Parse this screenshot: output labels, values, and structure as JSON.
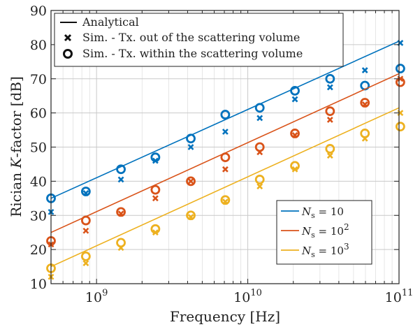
{
  "chart_data": {
    "type": "scatter",
    "xlabel": "Frequency [Hz]",
    "ylabel_prefix": "Rician ",
    "ylabel_var": "K",
    "ylabel_suffix": "-factor [dB]",
    "xscale": "log",
    "xlim": [
      500000000.0,
      100000000000.0
    ],
    "ylim": [
      10,
      90
    ],
    "grid": true,
    "y_ticks": [
      "10",
      "20",
      "30",
      "40",
      "50",
      "60",
      "70",
      "80",
      "90"
    ],
    "x_tick_mantissa": [
      "10",
      "10",
      "10"
    ],
    "x_tick_exponents": [
      "9",
      "10",
      "11"
    ],
    "x_tick_values": [
      1000000000.0,
      10000000000.0,
      100000000000.0
    ],
    "style_legend": {
      "placement": "top-left",
      "entries": [
        "Analytical",
        "Sim. - Tx. out of the scattering volume",
        "Sim. - Tx. within the scattering volume"
      ]
    },
    "series_legend": {
      "placement": "bottom-right",
      "entries": [
        {
          "var": "N",
          "sub": "s",
          "eq": " = 10",
          "sup": ""
        },
        {
          "var": "N",
          "sub": "s",
          "eq": " = 10",
          "sup": "2"
        },
        {
          "var": "N",
          "sub": "s",
          "eq": " = 10",
          "sup": "3"
        }
      ]
    },
    "colors": [
      "#0072BD",
      "#D95319",
      "#EDB120"
    ],
    "frequencies": [
      500000000.0,
      850000000.0,
      1450000000.0,
      2450000000.0,
      4200000000.0,
      7100000000.0,
      12000000000.0,
      20500000000.0,
      35000000000.0,
      59500000000.0,
      102000000000.0
    ],
    "series": [
      {
        "analytical": [
          [
            500000000.0,
            35.0
          ],
          [
            100000000000.0,
            81.0
          ]
        ],
        "out_of_volume": [
          31,
          36.5,
          40.5,
          46,
          50,
          54.5,
          58.5,
          64,
          67.5,
          72.5,
          80.5
        ],
        "within_volume": [
          35,
          37,
          43.5,
          47,
          52.5,
          59.5,
          61.5,
          66.5,
          70,
          68,
          73
        ]
      },
      {
        "analytical": [
          [
            500000000.0,
            25.0
          ],
          [
            100000000000.0,
            71.5
          ]
        ],
        "out_of_volume": [
          21.5,
          25.5,
          30.5,
          35,
          40,
          43.5,
          48.5,
          53.5,
          58,
          62.5,
          70
        ],
        "within_volume": [
          22.5,
          28.5,
          31,
          37.5,
          40,
          47,
          50,
          54,
          60.5,
          63,
          69
        ]
      },
      {
        "analytical": [
          [
            500000000.0,
            15.0
          ],
          [
            100000000000.0,
            61.5
          ]
        ],
        "out_of_volume": [
          12,
          16,
          20.5,
          25,
          29.5,
          34,
          38.5,
          43.5,
          47.5,
          52.5,
          60
        ],
        "within_volume": [
          14.5,
          18,
          22,
          26,
          30,
          34.5,
          40.5,
          44.5,
          49.5,
          54,
          56
        ]
      }
    ]
  }
}
